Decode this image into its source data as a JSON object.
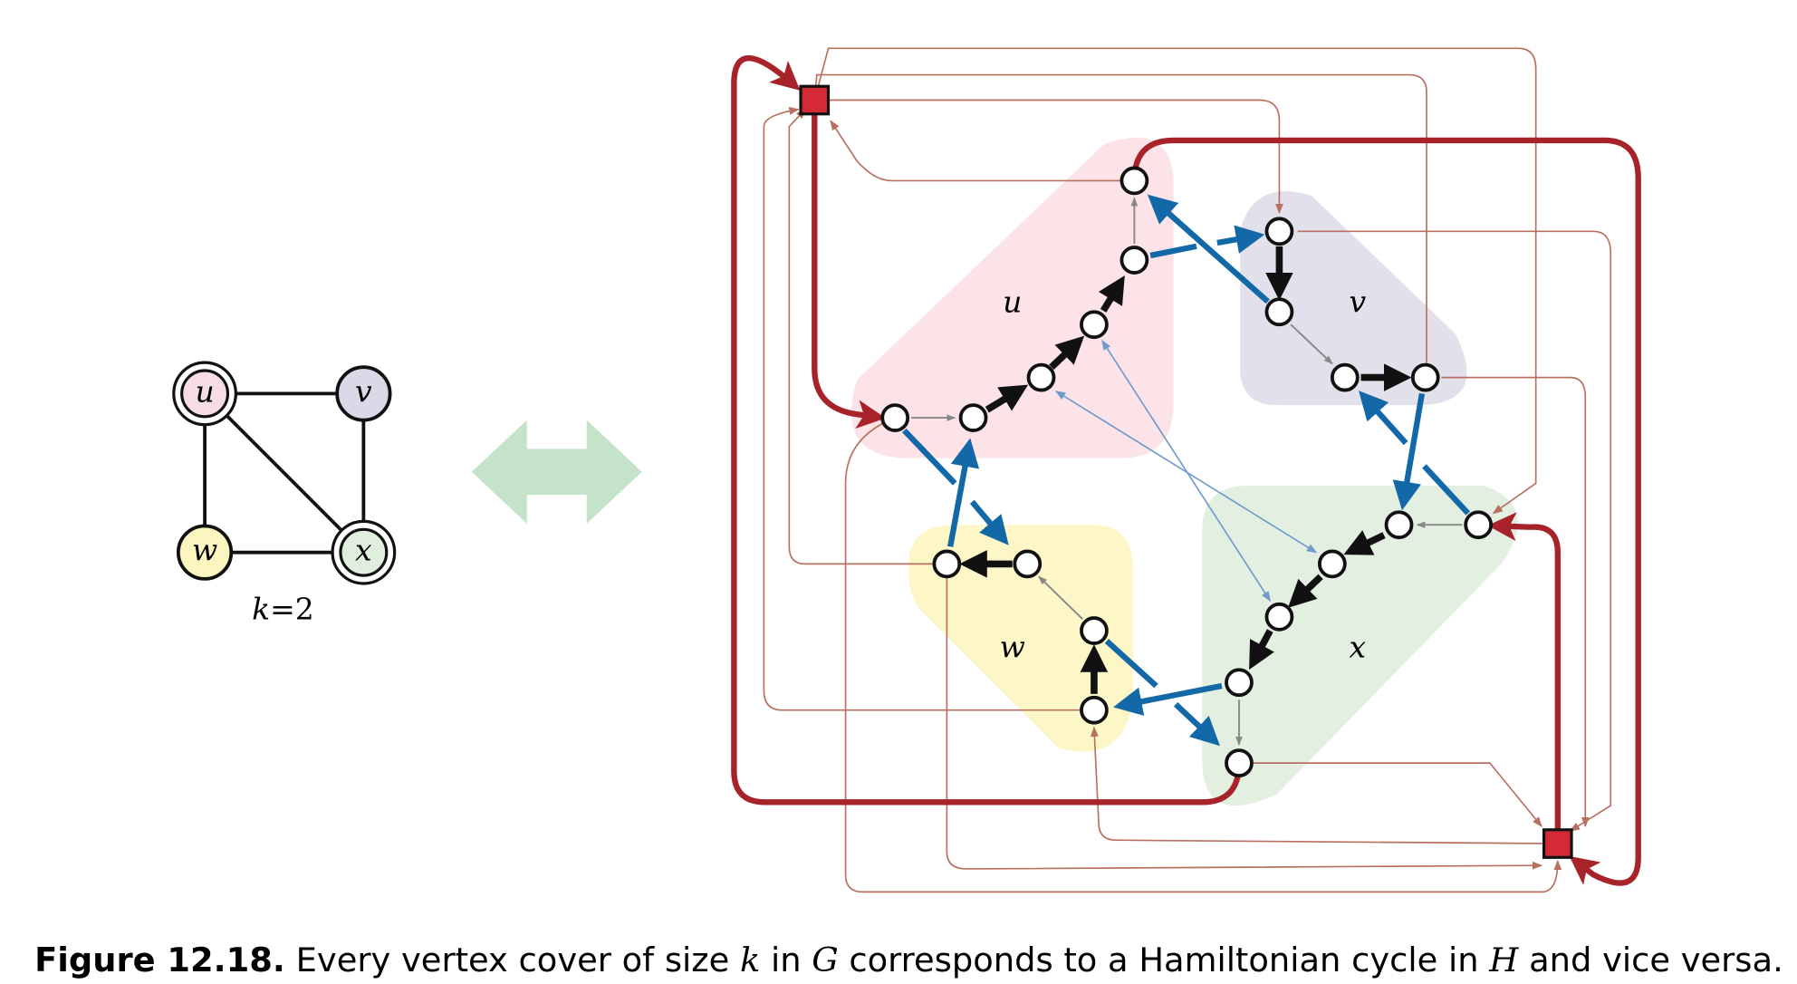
{
  "left_graph": {
    "nodes": [
      {
        "label": "u"
      },
      {
        "label": "v"
      },
      {
        "label": "w"
      },
      {
        "label": "x"
      }
    ],
    "k_symbol": "k",
    "k_value": "=2"
  },
  "right_graph": {
    "regions": [
      {
        "label": "u"
      },
      {
        "label": "v"
      },
      {
        "label": "w"
      },
      {
        "label": "x"
      }
    ]
  },
  "caption": {
    "label": "Figure 12.18.",
    "parts": [
      "Every vertex cover of size ",
      "k",
      " in ",
      "G",
      " corresponds to a Hamiltonian cycle in ",
      "H",
      " and vice versa."
    ]
  }
}
